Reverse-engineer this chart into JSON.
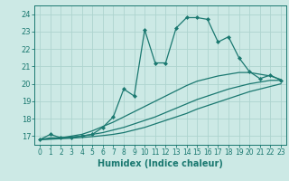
{
  "title": "",
  "xlabel": "Humidex (Indice chaleur)",
  "ylabel": "",
  "background_color": "#cce9e5",
  "grid_color": "#aed4cf",
  "line_color": "#1a7870",
  "xlim": [
    -0.5,
    23.5
  ],
  "ylim": [
    16.5,
    24.5
  ],
  "xticks": [
    0,
    1,
    2,
    3,
    4,
    5,
    6,
    7,
    8,
    9,
    10,
    11,
    12,
    13,
    14,
    15,
    16,
    17,
    18,
    19,
    20,
    21,
    22,
    23
  ],
  "yticks": [
    17,
    18,
    19,
    20,
    21,
    22,
    23,
    24
  ],
  "series": [
    {
      "x": [
        0,
        1,
        2,
        3,
        4,
        5,
        6,
        7,
        8,
        9,
        10,
        11,
        12,
        13,
        14,
        15,
        16,
        17,
        18,
        19,
        20,
        21,
        22,
        23
      ],
      "y": [
        16.8,
        17.1,
        16.9,
        16.9,
        17.0,
        17.1,
        17.5,
        18.1,
        19.7,
        19.3,
        23.1,
        21.2,
        21.2,
        23.2,
        23.8,
        23.8,
        23.7,
        22.4,
        22.7,
        21.5,
        20.7,
        20.3,
        20.5,
        20.2
      ],
      "marker": "D",
      "markersize": 2.0,
      "linewidth": 0.9
    },
    {
      "x": [
        0,
        1,
        2,
        3,
        4,
        5,
        6,
        7,
        8,
        9,
        10,
        11,
        12,
        13,
        14,
        15,
        16,
        17,
        18,
        19,
        20,
        21,
        22,
        23
      ],
      "y": [
        16.8,
        16.9,
        16.9,
        17.0,
        17.1,
        17.3,
        17.55,
        17.8,
        18.1,
        18.4,
        18.7,
        19.0,
        19.3,
        19.6,
        19.9,
        20.15,
        20.3,
        20.45,
        20.55,
        20.65,
        20.65,
        20.55,
        20.45,
        20.25
      ],
      "marker": null,
      "markersize": 0,
      "linewidth": 0.9
    },
    {
      "x": [
        0,
        1,
        2,
        3,
        4,
        5,
        6,
        7,
        8,
        9,
        10,
        11,
        12,
        13,
        14,
        15,
        16,
        17,
        18,
        19,
        20,
        21,
        22,
        23
      ],
      "y": [
        16.8,
        16.85,
        16.9,
        16.95,
        17.0,
        17.1,
        17.2,
        17.35,
        17.5,
        17.7,
        17.9,
        18.1,
        18.35,
        18.6,
        18.85,
        19.1,
        19.3,
        19.5,
        19.7,
        19.85,
        20.0,
        20.1,
        20.2,
        20.2
      ],
      "marker": null,
      "markersize": 0,
      "linewidth": 0.9
    },
    {
      "x": [
        0,
        1,
        2,
        3,
        4,
        5,
        6,
        7,
        8,
        9,
        10,
        11,
        12,
        13,
        14,
        15,
        16,
        17,
        18,
        19,
        20,
        21,
        22,
        23
      ],
      "y": [
        16.8,
        16.82,
        16.85,
        16.88,
        16.92,
        16.97,
        17.03,
        17.1,
        17.2,
        17.35,
        17.5,
        17.7,
        17.9,
        18.1,
        18.3,
        18.55,
        18.75,
        18.95,
        19.15,
        19.35,
        19.55,
        19.7,
        19.85,
        20.0
      ],
      "marker": null,
      "markersize": 0,
      "linewidth": 0.9
    }
  ]
}
